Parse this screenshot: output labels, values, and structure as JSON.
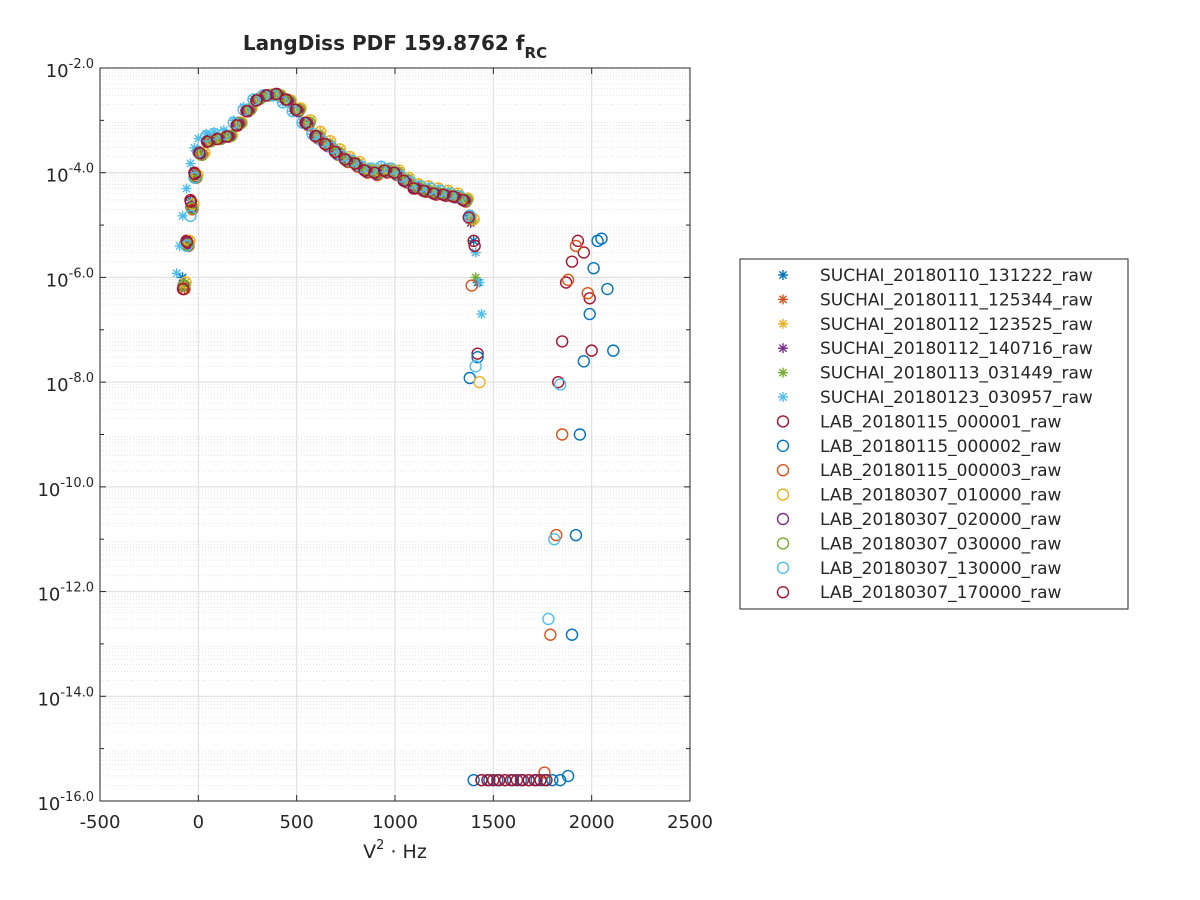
{
  "chart_data": {
    "type": "scatter",
    "title": "LangDiss PDF 159.8762 f",
    "title_subscript": "RC",
    "xlabel": "V · Hz",
    "xlabel_superscript": "2",
    "xlim": [
      -500,
      2500
    ],
    "ylim": [
      1e-16,
      0.01
    ],
    "yscale": "log",
    "grid": true,
    "minor_grid": true,
    "legend_position": "outside-right",
    "xticks": [
      "-500",
      "0",
      "500",
      "1000",
      "1500",
      "2000",
      "2500"
    ],
    "yticks": [
      {
        "base": "10",
        "exp": "-2.0"
      },
      {
        "base": "10",
        "exp": "-4.0"
      },
      {
        "base": "10",
        "exp": "-6.0"
      },
      {
        "base": "10",
        "exp": "-8.0"
      },
      {
        "base": "10",
        "exp": "-10.0"
      },
      {
        "base": "10",
        "exp": "-12.0"
      },
      {
        "base": "10",
        "exp": "-14.0"
      },
      {
        "base": "10",
        "exp": "-16.0"
      }
    ],
    "series": [
      {
        "name": "SUCHAI_20180110_131222_raw",
        "marker": "asterisk",
        "color": "#0072BD",
        "x": [
          -80,
          -60,
          -40,
          -20,
          0,
          50,
          100,
          150,
          200,
          250,
          300,
          350,
          400,
          450,
          500,
          550,
          600,
          650,
          700,
          750,
          800,
          850,
          900,
          950,
          1000,
          1050,
          1100,
          1150,
          1200,
          1250,
          1300,
          1350,
          1380,
          1400,
          1420
        ],
        "y": [
          1e-06,
          5e-06,
          3e-05,
          0.0001,
          0.00025,
          0.0004,
          0.00045,
          0.0005,
          0.0008,
          0.0015,
          0.0025,
          0.003,
          0.0032,
          0.0025,
          0.0016,
          0.0009,
          0.0005,
          0.00035,
          0.00025,
          0.00018,
          0.00015,
          0.00011,
          0.0001,
          0.00011,
          0.0001,
          7e-05,
          5e-05,
          4.5e-05,
          4e-05,
          3.8e-05,
          3.5e-05,
          3e-05,
          1.5e-05,
          5e-06,
          8e-07
        ]
      },
      {
        "name": "SUCHAI_20180111_125344_raw",
        "marker": "asterisk",
        "color": "#D95319",
        "x": [
          -70,
          -50,
          -30,
          -10,
          20,
          60,
          110,
          160,
          210,
          260,
          310,
          360,
          410,
          460,
          510,
          560,
          610,
          660,
          710,
          760,
          810,
          860,
          910,
          960,
          1010,
          1060,
          1110,
          1160,
          1210,
          1260,
          1310,
          1360,
          1390,
          1410
        ],
        "y": [
          6e-07,
          4e-06,
          2e-05,
          8e-05,
          0.00022,
          0.0004,
          0.00045,
          0.0005,
          0.0009,
          0.0016,
          0.0026,
          0.003,
          0.003,
          0.0023,
          0.0015,
          0.0008,
          0.00045,
          0.00032,
          0.00022,
          0.00016,
          0.00013,
          0.0001,
          9e-05,
          0.0001,
          9e-05,
          6.5e-05,
          5e-05,
          4.3e-05,
          3.8e-05,
          3.6e-05,
          3.4e-05,
          2.8e-05,
          1.2e-05,
          3e-06
        ]
      },
      {
        "name": "SUCHAI_20180112_123525_raw",
        "marker": "asterisk",
        "color": "#EDB120",
        "x": [
          -65,
          -45,
          -25,
          -5,
          30,
          70,
          120,
          170,
          220,
          270,
          320,
          370,
          420,
          470,
          520,
          570,
          620,
          670,
          720,
          770,
          820,
          870,
          920,
          970,
          1020,
          1070,
          1120,
          1170,
          1220,
          1270,
          1320,
          1370,
          1400
        ],
        "y": [
          8e-07,
          5e-06,
          2.5e-05,
          9e-05,
          0.00024,
          0.00042,
          0.00046,
          0.00052,
          0.0009,
          0.0017,
          0.0027,
          0.0031,
          0.003,
          0.0024,
          0.0017,
          0.001,
          0.0006,
          0.0004,
          0.00028,
          0.0002,
          0.00016,
          0.00012,
          0.00011,
          0.00012,
          0.00011,
          8e-05,
          6e-05,
          5.5e-05,
          5e-05,
          4.5e-05,
          4e-05,
          3.2e-05,
          1.3e-05
        ]
      },
      {
        "name": "SUCHAI_20180112_140716_raw",
        "marker": "asterisk",
        "color": "#7E2F8E",
        "x": [
          -75,
          -55,
          -35,
          -15,
          10,
          55,
          105,
          155,
          205,
          255,
          305,
          355,
          405,
          455,
          505,
          555,
          605,
          655,
          705,
          755,
          805,
          855,
          905,
          955,
          1005,
          1055,
          1105,
          1155,
          1205,
          1255,
          1305,
          1355,
          1385
        ],
        "y": [
          7e-07,
          4.5e-06,
          2.2e-05,
          8.5e-05,
          0.00023,
          0.00041,
          0.00044,
          0.00049,
          0.00085,
          0.0015,
          0.0025,
          0.003,
          0.0031,
          0.0024,
          0.0015,
          0.00085,
          0.00048,
          0.00033,
          0.00023,
          0.00017,
          0.00014,
          0.000105,
          9.5e-05,
          0.000105,
          9.5e-05,
          6.8e-05,
          5.2e-05,
          4.4e-05,
          3.9e-05,
          3.7e-05,
          3.4e-05,
          2.9e-05,
          1.1e-05
        ]
      },
      {
        "name": "SUCHAI_20180113_031449_raw",
        "marker": "asterisk",
        "color": "#77AC30",
        "x": [
          -72,
          -52,
          -32,
          -12,
          15,
          65,
          115,
          165,
          215,
          265,
          315,
          365,
          415,
          465,
          515,
          565,
          615,
          665,
          715,
          765,
          815,
          865,
          915,
          965,
          1015,
          1065,
          1115,
          1165,
          1215,
          1265,
          1315,
          1365,
          1395,
          1410
        ],
        "y": [
          7e-07,
          4.2e-06,
          2.1e-05,
          8.2e-05,
          0.00022,
          0.0004,
          0.00044,
          0.0005,
          0.00088,
          0.0016,
          0.0026,
          0.003,
          0.003,
          0.0023,
          0.0016,
          0.0009,
          0.0005,
          0.00034,
          0.00024,
          0.00017,
          0.00014,
          0.00011,
          0.0001,
          0.00011,
          0.0001,
          7.2e-05,
          5.4e-05,
          4.6e-05,
          4.1e-05,
          3.9e-05,
          3.6e-05,
          3e-05,
          1.2e-05,
          1e-06
        ]
      },
      {
        "name": "SUCHAI_20180123_030957_raw",
        "marker": "asterisk",
        "color": "#4DBEEE",
        "x": [
          -110,
          -95,
          -80,
          -60,
          -40,
          -20,
          0,
          40,
          80,
          130,
          180,
          230,
          280,
          330,
          380,
          430,
          480,
          530,
          580,
          630,
          680,
          730,
          780,
          830,
          880,
          930,
          980,
          1030,
          1080,
          1130,
          1180,
          1230,
          1280,
          1330,
          1380,
          1410,
          1430,
          1440
        ],
        "y": [
          1.2e-06,
          4e-06,
          1.5e-05,
          5e-05,
          0.00015,
          0.0003,
          0.00045,
          0.00055,
          0.0006,
          0.00065,
          0.001,
          0.0018,
          0.0026,
          0.003,
          0.003,
          0.0022,
          0.0015,
          0.0009,
          0.00055,
          0.0004,
          0.0003,
          0.00021,
          0.00017,
          0.00013,
          0.00012,
          0.00013,
          0.00012,
          8.5e-05,
          6.5e-05,
          5.5e-05,
          5e-05,
          4.5e-05,
          4e-05,
          3.5e-05,
          1.6e-05,
          3e-06,
          8e-07,
          2e-07
        ]
      },
      {
        "name": "LAB_20180115_000001_raw",
        "marker": "circle",
        "color": "#A2142F",
        "x": [
          -75,
          -60,
          -40,
          -20,
          0,
          50,
          100,
          150,
          200,
          250,
          300,
          350,
          400,
          450,
          500,
          550,
          600,
          650,
          700,
          750,
          800,
          850,
          900,
          950,
          1000,
          1050,
          1100,
          1150,
          1200,
          1250,
          1300,
          1350,
          1380,
          1400,
          1420,
          1830,
          1850,
          1870,
          1900,
          1930,
          1960,
          1990,
          2000
        ],
        "y": [
          6e-07,
          5e-06,
          3e-05,
          0.0001,
          0.00025,
          0.0004,
          0.00045,
          0.0005,
          0.0008,
          0.0015,
          0.0025,
          0.003,
          0.0032,
          0.0025,
          0.0016,
          0.0009,
          0.0005,
          0.00035,
          0.00025,
          0.00018,
          0.00015,
          0.00011,
          0.0001,
          0.00011,
          0.0001,
          7e-05,
          5e-05,
          4.5e-05,
          4e-05,
          3.8e-05,
          3.5e-05,
          3e-05,
          1.5e-05,
          5e-06,
          3.5e-08,
          1e-08,
          6e-08,
          8e-07,
          2e-06,
          5e-06,
          3e-06,
          4e-07,
          4e-08
        ]
      },
      {
        "name": "LAB_20180115_000002_raw",
        "marker": "circle",
        "color": "#0072BD",
        "x": [
          1380,
          1420,
          1900,
          1920,
          1940,
          1960,
          1990,
          2010,
          2030,
          2050,
          2080,
          2110,
          1400,
          1440,
          1480,
          1520,
          1560,
          1600,
          1640,
          1680,
          1720,
          1760,
          1800,
          1840,
          1880
        ],
        "y": [
          1.2e-08,
          3e-08,
          1.5e-13,
          1.2e-11,
          1e-09,
          2.5e-08,
          2e-07,
          1.5e-06,
          5e-06,
          5.5e-06,
          6e-07,
          4e-08,
          2.5e-16,
          2.5e-16,
          2.5e-16,
          2.5e-16,
          2.5e-16,
          2.5e-16,
          2.5e-16,
          2.5e-16,
          2.5e-16,
          2.5e-16,
          2.5e-16,
          2.5e-16,
          3e-16
        ]
      },
      {
        "name": "LAB_20180115_000003_raw",
        "marker": "circle",
        "color": "#D95319",
        "x": [
          -70,
          -50,
          -30,
          -10,
          20,
          60,
          110,
          160,
          210,
          260,
          310,
          360,
          410,
          460,
          510,
          560,
          610,
          660,
          710,
          760,
          810,
          860,
          910,
          960,
          1010,
          1060,
          1110,
          1160,
          1210,
          1260,
          1310,
          1360,
          1390,
          1760,
          1790,
          1820,
          1850,
          1880,
          1920,
          1980
        ],
        "y": [
          6e-07,
          4e-06,
          2e-05,
          8e-05,
          0.00022,
          0.0004,
          0.00045,
          0.0005,
          0.0009,
          0.0016,
          0.0026,
          0.003,
          0.003,
          0.0023,
          0.0015,
          0.0008,
          0.00045,
          0.00032,
          0.00022,
          0.00016,
          0.00013,
          0.0001,
          9e-05,
          0.0001,
          9e-05,
          6.5e-05,
          5e-05,
          4.3e-05,
          3.8e-05,
          3.6e-05,
          3.4e-05,
          2.8e-05,
          7e-07,
          3.5e-16,
          1.5e-13,
          1.2e-11,
          1e-09,
          9e-07,
          4e-06,
          5e-07
        ]
      },
      {
        "name": "LAB_20180307_010000_raw",
        "marker": "circle",
        "color": "#EDB120",
        "x": [
          -65,
          -45,
          -25,
          -5,
          30,
          70,
          120,
          170,
          220,
          270,
          320,
          370,
          420,
          470,
          520,
          570,
          620,
          670,
          720,
          770,
          820,
          870,
          920,
          970,
          1020,
          1070,
          1120,
          1170,
          1220,
          1270,
          1320,
          1370,
          1400,
          1430
        ],
        "y": [
          8e-07,
          5e-06,
          2.5e-05,
          9e-05,
          0.00024,
          0.00042,
          0.00046,
          0.00052,
          0.0009,
          0.0017,
          0.0027,
          0.0031,
          0.003,
          0.0024,
          0.0017,
          0.001,
          0.0006,
          0.0004,
          0.00028,
          0.0002,
          0.00016,
          0.00012,
          0.00011,
          0.00012,
          0.00011,
          8e-05,
          6e-05,
          5.5e-05,
          5e-05,
          4.5e-05,
          4e-05,
          3.2e-05,
          1.3e-05,
          1e-08
        ]
      },
      {
        "name": "LAB_20180307_020000_raw",
        "marker": "circle",
        "color": "#7E2F8E",
        "x": [
          -75,
          -55,
          -35,
          -15,
          10,
          55,
          105,
          155,
          205,
          255,
          305,
          355,
          405,
          455,
          505,
          555,
          605,
          655,
          705,
          755,
          805,
          855,
          905,
          955,
          1005,
          1055,
          1105,
          1155,
          1205,
          1255,
          1305,
          1355
        ],
        "y": [
          7e-07,
          4.5e-06,
          2.2e-05,
          8.5e-05,
          0.00023,
          0.00041,
          0.00044,
          0.00049,
          0.00085,
          0.0015,
          0.0025,
          0.003,
          0.0031,
          0.0024,
          0.0015,
          0.00085,
          0.00048,
          0.00033,
          0.00023,
          0.00017,
          0.00014,
          0.000105,
          9.5e-05,
          0.000105,
          9.5e-05,
          6.8e-05,
          5.2e-05,
          4.4e-05,
          3.9e-05,
          3.7e-05,
          3.4e-05,
          2.9e-05
        ]
      },
      {
        "name": "LAB_20180307_030000_raw",
        "marker": "circle",
        "color": "#77AC30",
        "x": [
          -72,
          -52,
          -32,
          -12,
          15,
          65,
          115,
          165,
          215,
          265,
          315,
          365,
          415,
          465,
          515,
          565,
          615,
          665,
          715,
          765,
          815,
          865,
          915,
          965,
          1015,
          1065,
          1115,
          1165,
          1215,
          1265,
          1315,
          1365
        ],
        "y": [
          7e-07,
          4.2e-06,
          2.1e-05,
          8.2e-05,
          0.00022,
          0.0004,
          0.00044,
          0.0005,
          0.00088,
          0.0016,
          0.0026,
          0.003,
          0.003,
          0.0023,
          0.0016,
          0.0009,
          0.0005,
          0.00034,
          0.00024,
          0.00017,
          0.00014,
          0.00011,
          0.0001,
          0.00011,
          0.0001,
          7.2e-05,
          5.4e-05,
          4.6e-05,
          4.1e-05,
          3.9e-05,
          3.6e-05,
          3e-05
        ]
      },
      {
        "name": "LAB_20180307_130000_raw",
        "marker": "circle",
        "color": "#4DBEEE",
        "x": [
          -60,
          -40,
          -20,
          0,
          40,
          80,
          130,
          180,
          230,
          280,
          330,
          380,
          430,
          480,
          530,
          580,
          630,
          680,
          730,
          780,
          830,
          880,
          930,
          980,
          1030,
          1080,
          1130,
          1180,
          1230,
          1280,
          1330,
          1380,
          1410,
          1780,
          1810,
          1840
        ],
        "y": [
          4e-06,
          1.5e-05,
          8e-05,
          0.00025,
          0.0005,
          0.00055,
          0.00055,
          0.0009,
          0.0016,
          0.0025,
          0.003,
          0.003,
          0.0022,
          0.0015,
          0.0009,
          0.00055,
          0.0004,
          0.0003,
          0.00021,
          0.00017,
          0.00013,
          0.00012,
          0.00013,
          0.00012,
          8.5e-05,
          6.5e-05,
          5.5e-05,
          5e-05,
          4.5e-05,
          4e-05,
          3.5e-05,
          1.5e-05,
          2e-08,
          3e-13,
          1e-11,
          9e-09
        ]
      },
      {
        "name": "LAB_20180307_170000_raw",
        "marker": "circle",
        "color": "#A2142F",
        "x": [
          -78,
          -58,
          -38,
          -18,
          5,
          45,
          95,
          145,
          195,
          245,
          295,
          345,
          395,
          445,
          495,
          545,
          595,
          645,
          695,
          745,
          795,
          845,
          895,
          945,
          995,
          1045,
          1095,
          1145,
          1195,
          1245,
          1295,
          1345,
          1375,
          1405,
          1440,
          1470,
          1500,
          1530,
          1560,
          1590,
          1620,
          1650,
          1680,
          1710,
          1740,
          1770
        ],
        "y": [
          6e-07,
          4.8e-06,
          2.8e-05,
          9.5e-05,
          0.00024,
          0.00039,
          0.00044,
          0.00049,
          0.0008,
          0.0015,
          0.0024,
          0.003,
          0.0032,
          0.0025,
          0.0016,
          0.0009,
          0.0005,
          0.00035,
          0.00025,
          0.00018,
          0.00015,
          0.00011,
          0.0001,
          0.00011,
          0.0001,
          7e-05,
          5e-05,
          4.5e-05,
          4e-05,
          3.8e-05,
          3.5e-05,
          3e-05,
          1.4e-05,
          4e-06,
          2.5e-16,
          2.5e-16,
          2.5e-16,
          2.5e-16,
          2.5e-16,
          2.5e-16,
          2.5e-16,
          2.5e-16,
          2.5e-16,
          2.5e-16,
          2.5e-16,
          2.5e-16
        ]
      }
    ]
  }
}
